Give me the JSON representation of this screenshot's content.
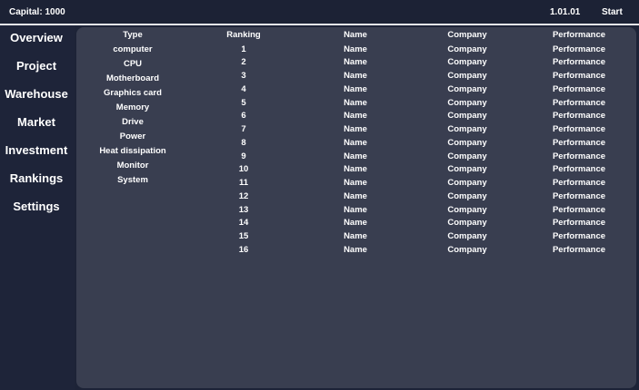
{
  "header": {
    "capital": "Capital: 1000",
    "date": "1.01.01",
    "start": "Start"
  },
  "nav": [
    "Overview",
    "Project",
    "Warehouse",
    "Market",
    "Investment",
    "Rankings",
    "Settings"
  ],
  "types": {
    "header": "Type",
    "items": [
      "computer",
      "CPU",
      "Motherboard",
      "Graphics card",
      "Memory",
      "Drive",
      "Power",
      "Heat dissipation",
      "Monitor",
      "System"
    ]
  },
  "table": {
    "headers": [
      "Ranking",
      "Name",
      "Company",
      "Performance"
    ],
    "rows": [
      [
        "1",
        "Name",
        "Company",
        "Performance"
      ],
      [
        "2",
        "Name",
        "Company",
        "Performance"
      ],
      [
        "3",
        "Name",
        "Company",
        "Performance"
      ],
      [
        "4",
        "Name",
        "Company",
        "Performance"
      ],
      [
        "5",
        "Name",
        "Company",
        "Performance"
      ],
      [
        "6",
        "Name",
        "Company",
        "Performance"
      ],
      [
        "7",
        "Name",
        "Company",
        "Performance"
      ],
      [
        "8",
        "Name",
        "Company",
        "Performance"
      ],
      [
        "9",
        "Name",
        "Company",
        "Performance"
      ],
      [
        "10",
        "Name",
        "Company",
        "Performance"
      ],
      [
        "11",
        "Name",
        "Company",
        "Performance"
      ],
      [
        "12",
        "Name",
        "Company",
        "Performance"
      ],
      [
        "13",
        "Name",
        "Company",
        "Performance"
      ],
      [
        "14",
        "Name",
        "Company",
        "Performance"
      ],
      [
        "15",
        "Name",
        "Company",
        "Performance"
      ],
      [
        "16",
        "Name",
        "Company",
        "Performance"
      ]
    ]
  }
}
